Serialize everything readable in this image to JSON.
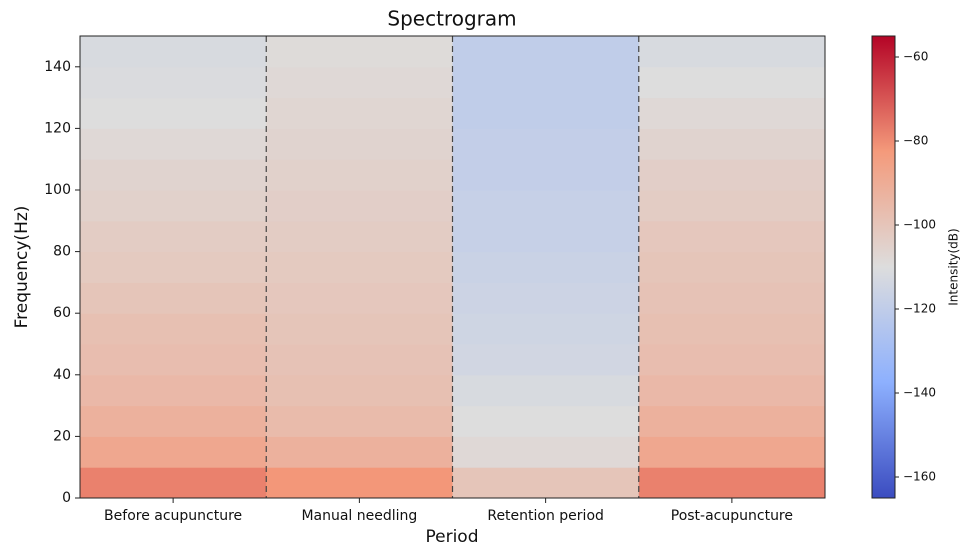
{
  "chart_data": {
    "type": "heatmap",
    "title": "Spectrogram",
    "x_label": "Period",
    "y_label": "Frequency(Hz)",
    "categories": [
      "Before acupuncture",
      "Manual needling",
      "Retention period",
      "Post-acupuncture"
    ],
    "ylim": [
      0,
      150
    ],
    "yticks": [
      0,
      20,
      40,
      60,
      80,
      100,
      120,
      140
    ],
    "y_bins": [
      0,
      10,
      20,
      30,
      40,
      50,
      60,
      70,
      80,
      90,
      100,
      110,
      120,
      130,
      140,
      150
    ],
    "values": [
      [
        -78,
        -88,
        -92,
        -95,
        -97,
        -98,
        -100,
        -102,
        -103,
        -105,
        -106,
        -108,
        -110,
        -111,
        -112
      ],
      [
        -82,
        -92,
        -96,
        -98,
        -99,
        -100,
        -101,
        -102,
        -103,
        -104,
        -105,
        -106,
        -107,
        -108,
        -109
      ],
      [
        -100,
        -108,
        -110,
        -112,
        -114,
        -115,
        -116,
        -117,
        -118,
        -118,
        -119,
        -119,
        -120,
        -120,
        -120
      ],
      [
        -78,
        -88,
        -92,
        -95,
        -97,
        -98,
        -99,
        -100,
        -101,
        -103,
        -104,
        -106,
        -108,
        -110,
        -112
      ]
    ],
    "colormap": [
      "#3b4cc0",
      "#8db0fe",
      "#dddddd",
      "#f49a7b",
      "#b40426"
    ],
    "colorbar_label": "Intensity(dB)",
    "clim": [
      -165,
      -55
    ],
    "cticks": [
      {
        "value": -160,
        "label": "−160"
      },
      {
        "value": -140,
        "label": "−140"
      },
      {
        "value": -120,
        "label": "−120"
      },
      {
        "value": -100,
        "label": "−100"
      },
      {
        "value": -80,
        "label": "−80"
      },
      {
        "value": -60,
        "label": "−60"
      }
    ]
  }
}
